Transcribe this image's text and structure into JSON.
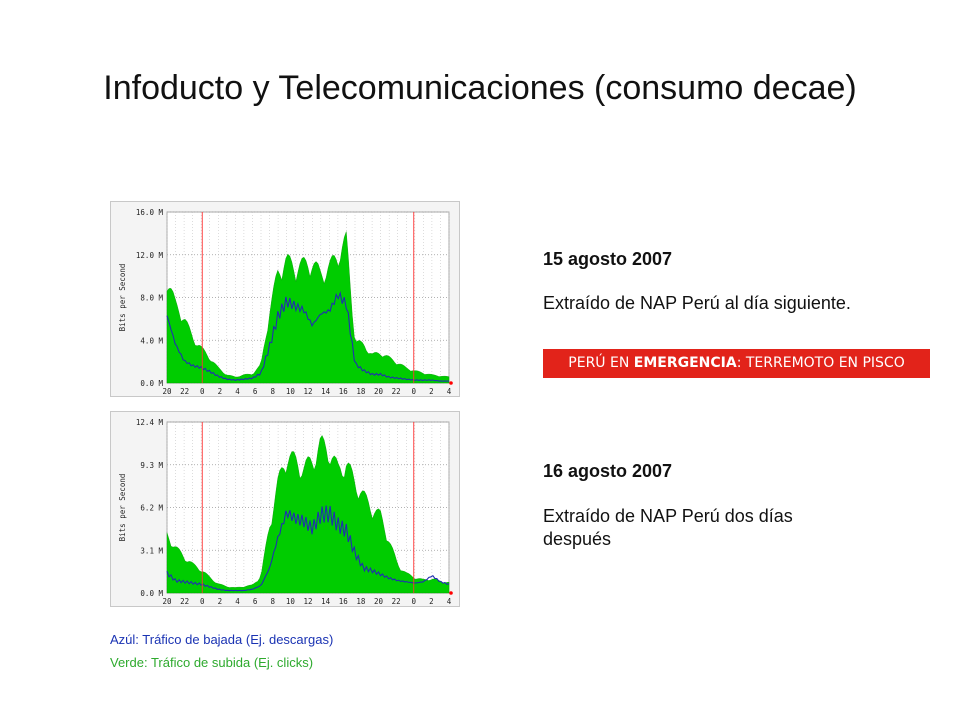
{
  "title": "Infoducto y Telecomunicaciones  (consumo decae)",
  "panels": [
    {
      "date": "15 agosto 2007",
      "caption": "Extraído de NAP Perú al día siguiente."
    },
    {
      "date": "16 agosto 2007",
      "caption": "Extraído de NAP Perú dos días después"
    }
  ],
  "banner": {
    "prefix": "PERÚ EN ",
    "bold": "EMERGENCIA",
    "suffix": ": TERREMOTO EN PISCO",
    "color": "#e2231a"
  },
  "legend": {
    "blue": "Azúl: Tráfico de bajada (Ej. descargas)",
    "green": "Verde: Tráfico de subida (Ej. clicks)"
  },
  "chart_data": [
    {
      "type": "area",
      "ylabel": "Bits per Second",
      "y_unit": "M",
      "yticks": [
        "0.0 M",
        "4.0 M",
        "8.0 M",
        "12.0 M",
        "16.0 M"
      ],
      "ylim": [
        0,
        16
      ],
      "x_ticks": [
        "20",
        "22",
        "0",
        "2",
        "4",
        "6",
        "8",
        "10",
        "12",
        "14",
        "16",
        "18",
        "20",
        "22",
        "0",
        "2",
        "4"
      ],
      "midnight_tick_indices": [
        2,
        14
      ],
      "grid": true,
      "hours": [
        20,
        21,
        22,
        23,
        0,
        1,
        2,
        3,
        4,
        5,
        6,
        7,
        8,
        9,
        10,
        11,
        12,
        13,
        14,
        15,
        16,
        17,
        18,
        19,
        20,
        21,
        22,
        23,
        0,
        1,
        2,
        3,
        4,
        5
      ],
      "series": [
        {
          "name": "Verde",
          "color": "#00cc00",
          "values": [
            10.5,
            7.8,
            6.5,
            4.5,
            3.5,
            2.5,
            1.5,
            0.8,
            0.6,
            0.8,
            0.9,
            1.8,
            7.0,
            11.2,
            12.2,
            11.5,
            11.8,
            12.0,
            10.8,
            11.5,
            12.8,
            14.2,
            4.2,
            3.8,
            2.8,
            3.0,
            2.5,
            2.0,
            1.5,
            1.2,
            1.0,
            0.8,
            0.7,
            0.6
          ]
        },
        {
          "name": "Azúl",
          "color": "#1f2fb0",
          "values": [
            7.0,
            4.0,
            2.3,
            1.8,
            1.6,
            1.2,
            0.7,
            0.4,
            0.3,
            0.4,
            0.5,
            1.0,
            3.8,
            7.0,
            8.5,
            8.0,
            7.6,
            6.0,
            7.2,
            7.5,
            9.2,
            8.2,
            2.0,
            1.3,
            0.9,
            0.9,
            0.6,
            0.5,
            0.4,
            0.3,
            0.3,
            0.3,
            0.2,
            0.2
          ]
        }
      ]
    },
    {
      "type": "area",
      "ylabel": "Bits per Second",
      "y_unit": "M",
      "yticks": [
        "0.0 M",
        "3.1 M",
        "6.2 M",
        "9.3 M",
        "12.4 M"
      ],
      "ylim": [
        0,
        12.4
      ],
      "x_ticks": [
        "20",
        "22",
        "0",
        "2",
        "4",
        "6",
        "8",
        "10",
        "12",
        "14",
        "16",
        "18",
        "20",
        "22",
        "0",
        "2",
        "4"
      ],
      "midnight_tick_indices": [
        2,
        14
      ],
      "grid": true,
      "hours": [
        20,
        21,
        22,
        23,
        0,
        1,
        2,
        3,
        4,
        5,
        6,
        7,
        8,
        9,
        10,
        11,
        12,
        13,
        14,
        15,
        16,
        17,
        18,
        19,
        20,
        21,
        22,
        23,
        0,
        1,
        2,
        3,
        4,
        5
      ],
      "series": [
        {
          "name": "Verde",
          "color": "#00cc00",
          "values": [
            4.5,
            3.5,
            2.8,
            2.2,
            1.8,
            1.2,
            0.7,
            0.5,
            0.4,
            0.5,
            0.6,
            1.3,
            5.2,
            8.5,
            10.6,
            10.2,
            9.6,
            10.2,
            11.5,
            11.0,
            9.5,
            10.0,
            8.5,
            7.5,
            6.5,
            6.0,
            4.0,
            2.2,
            1.5,
            1.2,
            1.0,
            1.1,
            0.9,
            0.8
          ]
        },
        {
          "name": "Azúl",
          "color": "#1f2fb0",
          "values": [
            1.6,
            1.0,
            0.9,
            0.8,
            0.7,
            0.5,
            0.3,
            0.2,
            0.2,
            0.2,
            0.3,
            0.6,
            2.0,
            4.5,
            6.5,
            6.0,
            5.8,
            5.2,
            6.3,
            6.4,
            5.5,
            5.0,
            3.2,
            2.0,
            1.8,
            1.5,
            1.2,
            1.0,
            0.9,
            0.8,
            0.9,
            1.4,
            0.9,
            0.7
          ]
        }
      ]
    }
  ]
}
